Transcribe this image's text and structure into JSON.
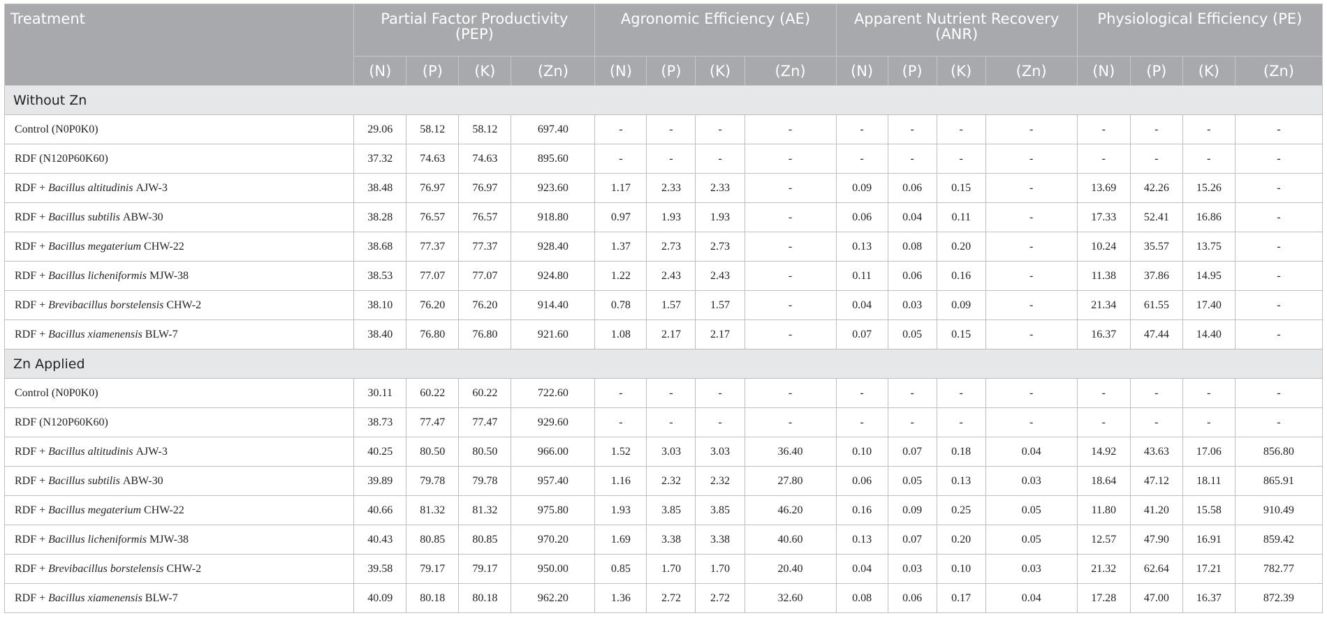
{
  "table": {
    "header": {
      "treatment": "Treatment",
      "groups": [
        {
          "title": "Partial Factor Productivity (PEP)",
          "columns": [
            "(N)",
            "(P)",
            "(K)",
            "(Zn)"
          ]
        },
        {
          "title": "Agronomic Efficiency (AE)",
          "columns": [
            "(N)",
            "(P)",
            "(K)",
            "(Zn)"
          ]
        },
        {
          "title": "Apparent Nutrient Recovery (ANR)",
          "columns": [
            "(N)",
            "(P)",
            "(K)",
            "(Zn)"
          ]
        },
        {
          "title": "Physiological Efficiency (PE)",
          "columns": [
            "(N)",
            "(P)",
            "(K)",
            "(Zn)"
          ]
        }
      ]
    },
    "sections": [
      {
        "title": "Without Zn",
        "rows": [
          {
            "treatment": {
              "text": "Control (N0P0K0)"
            },
            "values": [
              "29.06",
              "58.12",
              "58.12",
              "697.40",
              "-",
              "-",
              "-",
              "-",
              "-",
              "-",
              "-",
              "-",
              "-",
              "-",
              "-",
              "-"
            ]
          },
          {
            "treatment": {
              "text": "RDF (N120P60K60)"
            },
            "values": [
              "37.32",
              "74.63",
              "74.63",
              "895.60",
              "-",
              "-",
              "-",
              "-",
              "-",
              "-",
              "-",
              "-",
              "-",
              "-",
              "-",
              "-"
            ]
          },
          {
            "treatment": {
              "prefix": "RDF +",
              "species": "Bacillus altitudinis",
              "strain": "AJW-3"
            },
            "values": [
              "38.48",
              "76.97",
              "76.97",
              "923.60",
              "1.17",
              "2.33",
              "2.33",
              "-",
              "0.09",
              "0.06",
              "0.15",
              "-",
              "13.69",
              "42.26",
              "15.26",
              "-"
            ]
          },
          {
            "treatment": {
              "prefix": "RDF +",
              "species": "Bacillus subtilis",
              "strain": "ABW-30"
            },
            "values": [
              "38.28",
              "76.57",
              "76.57",
              "918.80",
              "0.97",
              "1.93",
              "1.93",
              "-",
              "0.06",
              "0.04",
              "0.11",
              "-",
              "17.33",
              "52.41",
              "16.86",
              "-"
            ]
          },
          {
            "treatment": {
              "prefix": "RDF +",
              "species": "Bacillus megaterium",
              "strain": "CHW-22"
            },
            "values": [
              "38.68",
              "77.37",
              "77.37",
              "928.40",
              "1.37",
              "2.73",
              "2.73",
              "-",
              "0.13",
              "0.08",
              "0.20",
              "-",
              "10.24",
              "35.57",
              "13.75",
              "-"
            ]
          },
          {
            "treatment": {
              "prefix": "RDF +",
              "species": "Bacillus licheniformis",
              "strain": "MJW-38"
            },
            "values": [
              "38.53",
              "77.07",
              "77.07",
              "924.80",
              "1.22",
              "2.43",
              "2.43",
              "-",
              "0.11",
              "0.06",
              "0.16",
              "-",
              "11.38",
              "37.86",
              "14.95",
              "-"
            ]
          },
          {
            "treatment": {
              "prefix": "RDF +",
              "species": "Brevibacillus borstelensis",
              "strain": "CHW-2"
            },
            "values": [
              "38.10",
              "76.20",
              "76.20",
              "914.40",
              "0.78",
              "1.57",
              "1.57",
              "-",
              "0.04",
              "0.03",
              "0.09",
              "-",
              "21.34",
              "61.55",
              "17.40",
              "-"
            ]
          },
          {
            "treatment": {
              "prefix": "RDF +",
              "species": "Bacillus xiamenensis",
              "strain": "BLW-7"
            },
            "values": [
              "38.40",
              "76.80",
              "76.80",
              "921.60",
              "1.08",
              "2.17",
              "2.17",
              "-",
              "0.07",
              "0.05",
              "0.15",
              "-",
              "16.37",
              "47.44",
              "14.40",
              "-"
            ]
          }
        ]
      },
      {
        "title": "Zn Applied",
        "rows": [
          {
            "treatment": {
              "text": "Control (N0P0K0)"
            },
            "values": [
              "30.11",
              "60.22",
              "60.22",
              "722.60",
              "-",
              "-",
              "-",
              "-",
              "-",
              "-",
              "-",
              "-",
              "-",
              "-",
              "-",
              "-"
            ]
          },
          {
            "treatment": {
              "text": "RDF (N120P60K60)"
            },
            "values": [
              "38.73",
              "77.47",
              "77.47",
              "929.60",
              "-",
              "-",
              "-",
              "-",
              "-",
              "-",
              "-",
              "-",
              "-",
              "-",
              "-",
              "-"
            ]
          },
          {
            "treatment": {
              "prefix": "RDF +",
              "species": "Bacillus altitudinis",
              "strain": "AJW-3"
            },
            "values": [
              "40.25",
              "80.50",
              "80.50",
              "966.00",
              "1.52",
              "3.03",
              "3.03",
              "36.40",
              "0.10",
              "0.07",
              "0.18",
              "0.04",
              "14.92",
              "43.63",
              "17.06",
              "856.80"
            ]
          },
          {
            "treatment": {
              "prefix": "RDF +",
              "species": "Bacillus subtilis",
              "strain": "ABW-30"
            },
            "values": [
              "39.89",
              "79.78",
              "79.78",
              "957.40",
              "1.16",
              "2.32",
              "2.32",
              "27.80",
              "0.06",
              "0.05",
              "0.13",
              "0.03",
              "18.64",
              "47.12",
              "18.11",
              "865.91"
            ]
          },
          {
            "treatment": {
              "prefix": "RDF +",
              "species": "Bacillus megaterium",
              "strain": "CHW-22"
            },
            "values": [
              "40.66",
              "81.32",
              "81.32",
              "975.80",
              "1.93",
              "3.85",
              "3.85",
              "46.20",
              "0.16",
              "0.09",
              "0.25",
              "0.05",
              "11.80",
              "41.20",
              "15.58",
              "910.49"
            ]
          },
          {
            "treatment": {
              "prefix": "RDF +",
              "species": "Bacillus licheniformis",
              "strain": "MJW-38"
            },
            "values": [
              "40.43",
              "80.85",
              "80.85",
              "970.20",
              "1.69",
              "3.38",
              "3.38",
              "40.60",
              "0.13",
              "0.07",
              "0.20",
              "0.05",
              "12.57",
              "47.90",
              "16.91",
              "859.42"
            ]
          },
          {
            "treatment": {
              "prefix": "RDF +",
              "species": "Brevibacillus borstelensis",
              "strain": "CHW-2"
            },
            "values": [
              "39.58",
              "79.17",
              "79.17",
              "950.00",
              "0.85",
              "1.70",
              "1.70",
              "20.40",
              "0.04",
              "0.03",
              "0.10",
              "0.03",
              "21.32",
              "62.64",
              "17.21",
              "782.77"
            ]
          },
          {
            "treatment": {
              "prefix": "RDF +",
              "species": "Bacillus xiamenensis",
              "strain": "BLW-7"
            },
            "values": [
              "40.09",
              "80.18",
              "80.18",
              "962.20",
              "1.36",
              "2.72",
              "2.72",
              "32.60",
              "0.08",
              "0.06",
              "0.17",
              "0.04",
              "17.28",
              "47.00",
              "16.37",
              "872.39"
            ]
          }
        ]
      }
    ]
  }
}
